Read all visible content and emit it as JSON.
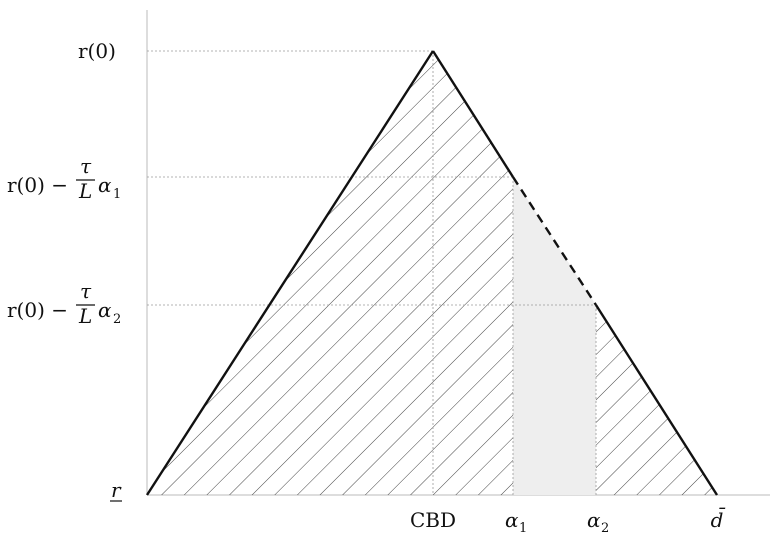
{
  "y_axis_labels": {
    "r0": "r(0)",
    "r0_minus_a1": {
      "prefix": "r(0) −",
      "num": "τ",
      "den": "L",
      "alpha": "α",
      "sub": "1"
    },
    "r0_minus_a2": {
      "prefix": "r(0) −",
      "num": "τ",
      "den": "L",
      "alpha": "α",
      "sub": "2"
    },
    "r_low": "r"
  },
  "x_axis_labels": {
    "cbd": "CBD",
    "alpha1": {
      "alpha": "α",
      "sub": "1"
    },
    "alpha2": {
      "alpha": "α",
      "sub": "2"
    },
    "dbar": "d̄"
  },
  "colors": {
    "line": "#111111",
    "axis": "#bbbbbb",
    "hatch": "#444444",
    "shade": "#eeeeee"
  }
}
